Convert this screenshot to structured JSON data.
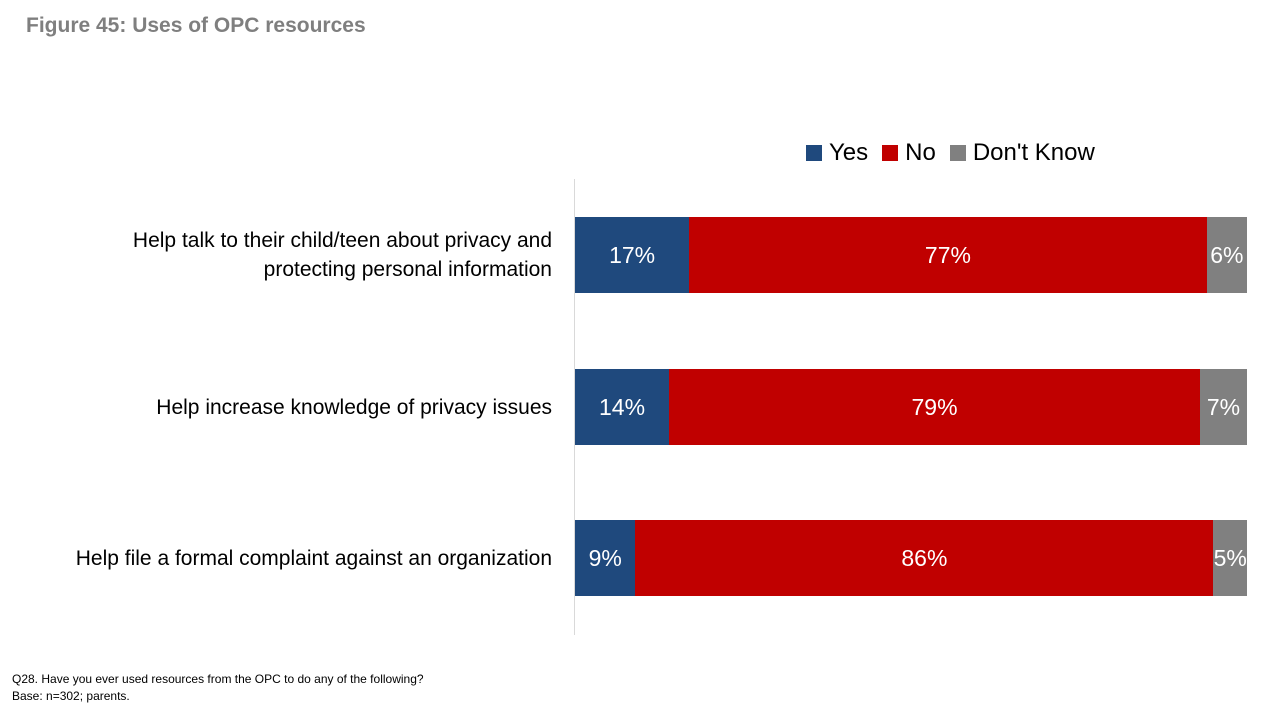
{
  "title": "Figure 45: Uses of OPC resources",
  "footnote": {
    "question": "Q28. Have you ever used resources from the OPC to do any of the following?",
    "base": "Base: n=302; parents."
  },
  "chart_data": {
    "type": "bar",
    "orientation": "horizontal",
    "stacked": true,
    "percent_stacked": true,
    "categories": [
      "Help talk to their child/teen about privacy and protecting personal information",
      "Help increase knowledge of privacy issues",
      "Help file a formal complaint against an organization"
    ],
    "category_lines": [
      [
        "Help talk to their child/teen about privacy and",
        "protecting personal information"
      ],
      [
        "Help increase knowledge of privacy issues"
      ],
      [
        "Help file a formal complaint against an organization"
      ]
    ],
    "series": [
      {
        "name": "Yes",
        "color": "#1f497d",
        "values": [
          17,
          14,
          9
        ],
        "labels": [
          "17%",
          "14%",
          "9%"
        ]
      },
      {
        "name": "No",
        "color": "#c00000",
        "values": [
          77,
          79,
          86
        ],
        "labels": [
          "77%",
          "79%",
          "86%"
        ]
      },
      {
        "name": "Don't Know",
        "color": "#808080",
        "values": [
          6,
          7,
          5
        ],
        "labels": [
          "6%",
          "7%",
          "5%"
        ]
      }
    ],
    "xlim": [
      0,
      100
    ],
    "legend_position": "top-right",
    "grid": false
  }
}
